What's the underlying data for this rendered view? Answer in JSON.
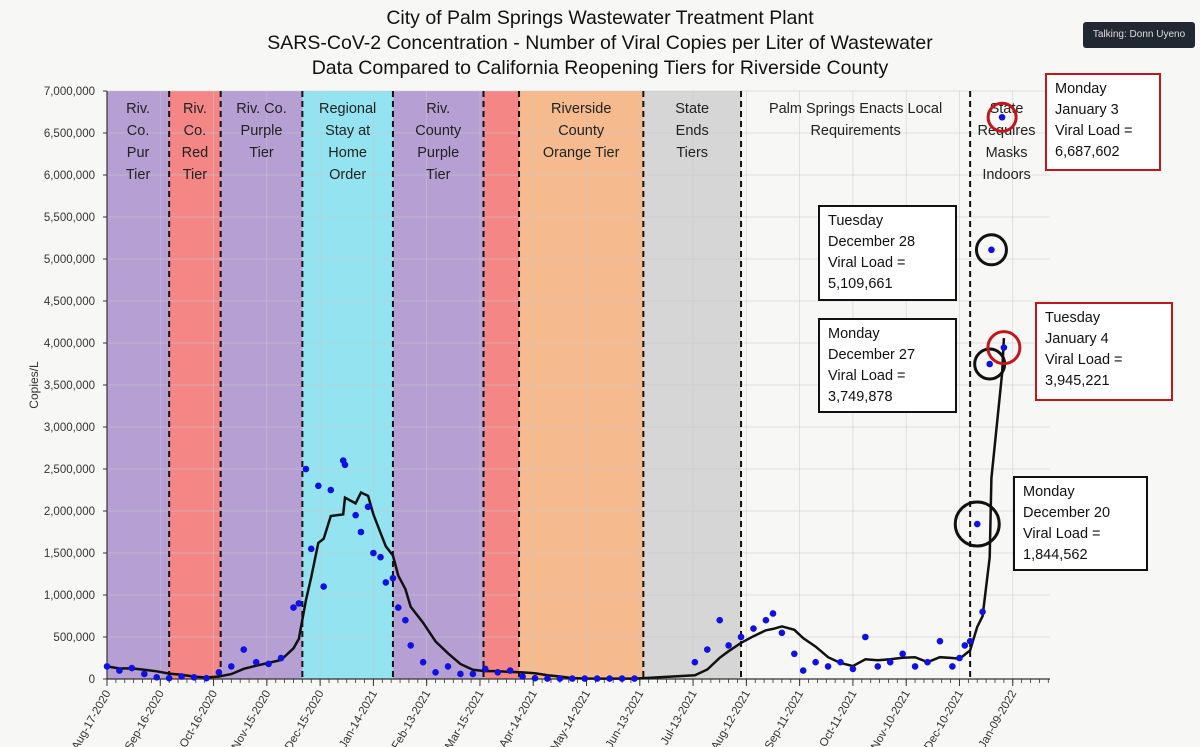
{
  "overlay": {
    "talking": "Talking: Donn Uyeno"
  },
  "chart_data": {
    "type": "scatter",
    "title": [
      "City of Palm Springs Wastewater Treatment Plant",
      "SARS-CoV-2 Concentration - Number of Viral Copies per Liter of Wastewater",
      "Data Compared to California Reopening Tiers for Riverside County"
    ],
    "xlabel": "",
    "ylabel": "Copies/L",
    "xlim": [
      "2020-08-17",
      "2022-02-10"
    ],
    "ylim": [
      0,
      7000000
    ],
    "yticks": [
      0,
      500000,
      1000000,
      1500000,
      2000000,
      2500000,
      3000000,
      3500000,
      4000000,
      4500000,
      5000000,
      5500000,
      6000000,
      6500000,
      7000000
    ],
    "ytick_labels": [
      "0",
      "500,000",
      "1,000,000",
      "1,500,000",
      "2,000,000",
      "2,500,000",
      "3,000,000",
      "3,500,000",
      "4,000,000",
      "4,500,000",
      "5,000,000",
      "5,500,000",
      "6,000,000",
      "6,500,000",
      "7,000,000"
    ],
    "xticks": [
      "2020-08-17",
      "2020-09-16",
      "2020-10-16",
      "2020-11-15",
      "2020-12-15",
      "2021-01-14",
      "2021-02-13",
      "2021-03-15",
      "2021-04-14",
      "2021-05-14",
      "2021-06-13",
      "2021-07-13",
      "2021-08-12",
      "2021-09-11",
      "2021-10-11",
      "2021-11-10",
      "2021-12-10",
      "2022-01-09"
    ],
    "xtick_labels": [
      "Aug-17-2020",
      "Sep-16-2020",
      "Oct-16-2020",
      "Nov-15-2020",
      "Dec-15-2020",
      "Jan-14-2021",
      "Feb-13-2021",
      "Mar-15-2021",
      "Apr-14-2021",
      "May-14-2021",
      "Jun-13-2021",
      "Jul-13-2021",
      "Aug-12-2021",
      "Sep-11-2021",
      "Oct-11-2021",
      "Nov-10-2021",
      "Dec-10-2021",
      "Jan-09-2022"
    ],
    "grid": true,
    "colors": {
      "points": "#1010e0",
      "line": "#111111",
      "purple": "#b59fd3",
      "red": "#f48686",
      "cyan": "#93e4f0",
      "orange": "#f5bb8e",
      "gray": "#d6d6d6"
    },
    "bands": [
      {
        "start": "2020-08-17",
        "end": "2020-09-21",
        "color": "purple",
        "label": [
          "Riv.",
          "Co.",
          "Pur",
          "Tier"
        ]
      },
      {
        "start": "2020-09-21",
        "end": "2020-10-20",
        "color": "red",
        "label": [
          "Riv.",
          "Co.",
          "Red",
          "Tier"
        ]
      },
      {
        "start": "2020-10-20",
        "end": "2020-12-05",
        "color": "purple",
        "label": [
          "Riv. Co.",
          "Purple",
          "Tier"
        ]
      },
      {
        "start": "2020-12-05",
        "end": "2021-01-25",
        "color": "cyan",
        "label": [
          "Regional",
          "Stay at",
          "Home",
          "Order"
        ]
      },
      {
        "start": "2021-01-25",
        "end": "2021-03-17",
        "color": "purple",
        "label": [
          "Riv.",
          "County",
          "Purple",
          "Tier"
        ]
      },
      {
        "start": "2021-03-17",
        "end": "2021-04-06",
        "color": "red",
        "label": []
      },
      {
        "start": "2021-04-06",
        "end": "2021-06-15",
        "color": "orange",
        "label": [
          "Riverside",
          "County",
          "Orange Tier"
        ]
      },
      {
        "start": "2021-06-15",
        "end": "2021-08-09",
        "color": "gray",
        "label": [
          "State",
          "Ends",
          "Tiers"
        ]
      },
      {
        "start": "2021-08-09",
        "end": "2021-12-16",
        "color": "none",
        "label": [
          "Palm Springs Enacts Local",
          "Requirements"
        ]
      },
      {
        "start": "2021-12-16",
        "end": "2022-01-26",
        "color": "none",
        "label": [
          "State",
          "Requires",
          "Masks",
          "Indoors"
        ]
      }
    ],
    "points": [
      [
        "2020-08-17",
        150000
      ],
      [
        "2020-08-24",
        100000
      ],
      [
        "2020-08-31",
        130000
      ],
      [
        "2020-09-07",
        60000
      ],
      [
        "2020-09-14",
        20000
      ],
      [
        "2020-09-21",
        10000
      ],
      [
        "2020-09-28",
        30000
      ],
      [
        "2020-10-05",
        20000
      ],
      [
        "2020-10-12",
        10000
      ],
      [
        "2020-10-19",
        80000
      ],
      [
        "2020-10-26",
        150000
      ],
      [
        "2020-11-02",
        350000
      ],
      [
        "2020-11-09",
        200000
      ],
      [
        "2020-11-16",
        180000
      ],
      [
        "2020-11-23",
        250000
      ],
      [
        "2020-11-30",
        850000
      ],
      [
        "2020-12-03",
        900000
      ],
      [
        "2020-12-07",
        2500000
      ],
      [
        "2020-12-10",
        1550000
      ],
      [
        "2020-12-14",
        2300000
      ],
      [
        "2020-12-17",
        1100000
      ],
      [
        "2020-12-21",
        2250000
      ],
      [
        "2020-12-28",
        2600000
      ],
      [
        "2020-12-29",
        2550000
      ],
      [
        "2021-01-04",
        1950000
      ],
      [
        "2021-01-07",
        1750000
      ],
      [
        "2021-01-11",
        2050000
      ],
      [
        "2021-01-14",
        1500000
      ],
      [
        "2021-01-18",
        1450000
      ],
      [
        "2021-01-21",
        1150000
      ],
      [
        "2021-01-25",
        1200000
      ],
      [
        "2021-01-28",
        850000
      ],
      [
        "2021-02-01",
        700000
      ],
      [
        "2021-02-04",
        400000
      ],
      [
        "2021-02-11",
        200000
      ],
      [
        "2021-02-18",
        80000
      ],
      [
        "2021-02-25",
        150000
      ],
      [
        "2021-03-04",
        60000
      ],
      [
        "2021-03-11",
        60000
      ],
      [
        "2021-03-18",
        120000
      ],
      [
        "2021-03-25",
        80000
      ],
      [
        "2021-04-01",
        100000
      ],
      [
        "2021-04-08",
        30000
      ],
      [
        "2021-04-15",
        10000
      ],
      [
        "2021-04-22",
        5000
      ],
      [
        "2021-04-29",
        5000
      ],
      [
        "2021-05-06",
        5000
      ],
      [
        "2021-05-13",
        5000
      ],
      [
        "2021-05-20",
        5000
      ],
      [
        "2021-05-27",
        5000
      ],
      [
        "2021-06-03",
        5000
      ],
      [
        "2021-06-10",
        5000
      ],
      [
        "2021-07-14",
        200000
      ],
      [
        "2021-07-21",
        350000
      ],
      [
        "2021-07-28",
        700000
      ],
      [
        "2021-08-02",
        400000
      ],
      [
        "2021-08-09",
        500000
      ],
      [
        "2021-08-16",
        600000
      ],
      [
        "2021-08-23",
        700000
      ],
      [
        "2021-08-27",
        780000
      ],
      [
        "2021-09-01",
        550000
      ],
      [
        "2021-09-08",
        300000
      ],
      [
        "2021-09-13",
        100000
      ],
      [
        "2021-09-20",
        200000
      ],
      [
        "2021-09-27",
        150000
      ],
      [
        "2021-10-04",
        200000
      ],
      [
        "2021-10-11",
        120000
      ],
      [
        "2021-10-18",
        500000
      ],
      [
        "2021-10-25",
        150000
      ],
      [
        "2021-11-01",
        200000
      ],
      [
        "2021-11-08",
        300000
      ],
      [
        "2021-11-15",
        150000
      ],
      [
        "2021-11-22",
        200000
      ],
      [
        "2021-11-29",
        450000
      ],
      [
        "2021-12-06",
        150000
      ],
      [
        "2021-12-10",
        250000
      ],
      [
        "2021-12-13",
        400000
      ],
      [
        "2021-12-16",
        450000
      ],
      [
        "2021-12-20",
        1844562
      ],
      [
        "2021-12-23",
        800000
      ],
      [
        "2021-12-27",
        3749878
      ],
      [
        "2021-12-28",
        5109661
      ],
      [
        "2022-01-03",
        6687602
      ],
      [
        "2022-01-04",
        3945221
      ]
    ],
    "annotations": [
      {
        "lines": [
          "Tuesday",
          "December 28",
          "Viral Load =",
          "5,109,661"
        ],
        "color": "black"
      },
      {
        "lines": [
          "Monday",
          "December 27",
          "Viral Load =",
          "3,749,878"
        ],
        "color": "black"
      },
      {
        "lines": [
          "Monday",
          "December 20",
          "Viral Load =",
          "1,844,562"
        ],
        "color": "black"
      },
      {
        "lines": [
          "Tuesday",
          "January 4",
          "Viral Load =",
          "3,945,221"
        ],
        "color": "red"
      },
      {
        "lines": [
          "Monday",
          "January 3",
          "Viral Load =",
          "6,687,602"
        ],
        "color": "red"
      }
    ]
  }
}
